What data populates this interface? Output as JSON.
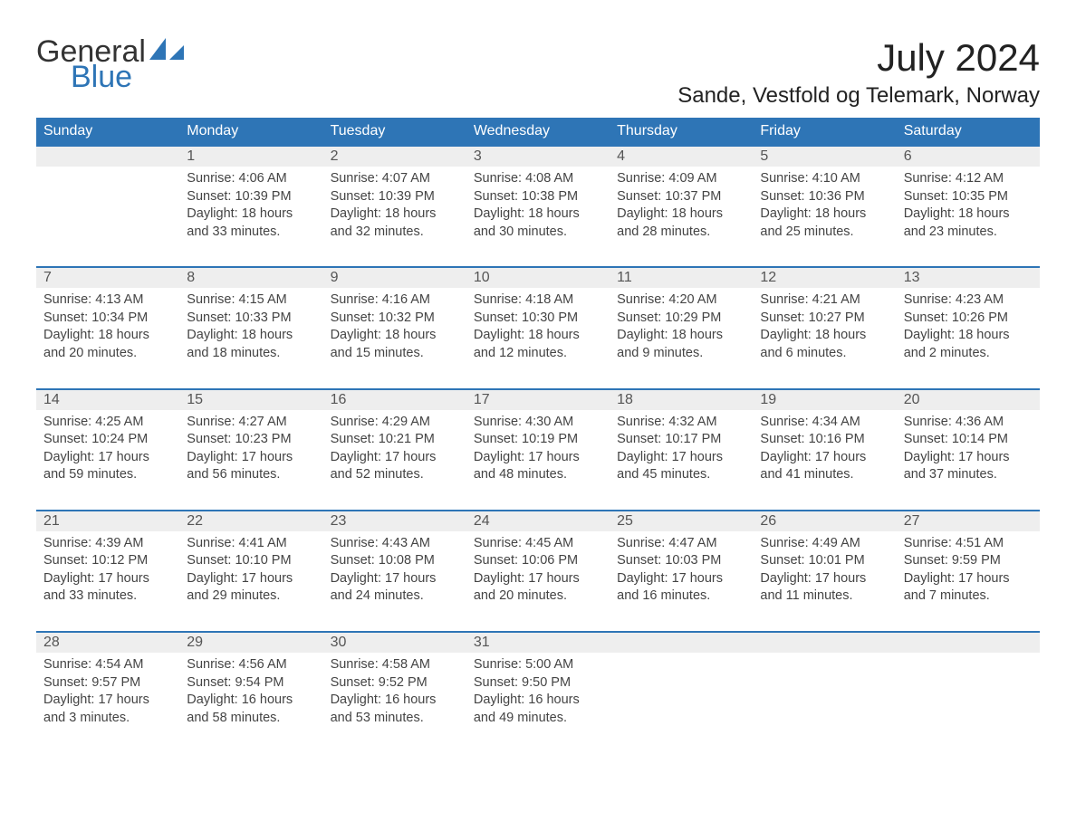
{
  "brand": {
    "word1": "General",
    "word2": "Blue",
    "accent_color": "#2e75b6"
  },
  "title": "July 2024",
  "location": "Sande, Vestfold og Telemark, Norway",
  "colors": {
    "header_bg": "#2e75b6",
    "header_text": "#ffffff",
    "daynum_bg": "#eeeeee",
    "row_border": "#2e75b6",
    "text": "#444444"
  },
  "day_labels": [
    "Sunday",
    "Monday",
    "Tuesday",
    "Wednesday",
    "Thursday",
    "Friday",
    "Saturday"
  ],
  "weeks": [
    [
      null,
      {
        "n": "1",
        "sunrise": "Sunrise: 4:06 AM",
        "sunset": "Sunset: 10:39 PM",
        "d1": "Daylight: 18 hours",
        "d2": "and 33 minutes."
      },
      {
        "n": "2",
        "sunrise": "Sunrise: 4:07 AM",
        "sunset": "Sunset: 10:39 PM",
        "d1": "Daylight: 18 hours",
        "d2": "and 32 minutes."
      },
      {
        "n": "3",
        "sunrise": "Sunrise: 4:08 AM",
        "sunset": "Sunset: 10:38 PM",
        "d1": "Daylight: 18 hours",
        "d2": "and 30 minutes."
      },
      {
        "n": "4",
        "sunrise": "Sunrise: 4:09 AM",
        "sunset": "Sunset: 10:37 PM",
        "d1": "Daylight: 18 hours",
        "d2": "and 28 minutes."
      },
      {
        "n": "5",
        "sunrise": "Sunrise: 4:10 AM",
        "sunset": "Sunset: 10:36 PM",
        "d1": "Daylight: 18 hours",
        "d2": "and 25 minutes."
      },
      {
        "n": "6",
        "sunrise": "Sunrise: 4:12 AM",
        "sunset": "Sunset: 10:35 PM",
        "d1": "Daylight: 18 hours",
        "d2": "and 23 minutes."
      }
    ],
    [
      {
        "n": "7",
        "sunrise": "Sunrise: 4:13 AM",
        "sunset": "Sunset: 10:34 PM",
        "d1": "Daylight: 18 hours",
        "d2": "and 20 minutes."
      },
      {
        "n": "8",
        "sunrise": "Sunrise: 4:15 AM",
        "sunset": "Sunset: 10:33 PM",
        "d1": "Daylight: 18 hours",
        "d2": "and 18 minutes."
      },
      {
        "n": "9",
        "sunrise": "Sunrise: 4:16 AM",
        "sunset": "Sunset: 10:32 PM",
        "d1": "Daylight: 18 hours",
        "d2": "and 15 minutes."
      },
      {
        "n": "10",
        "sunrise": "Sunrise: 4:18 AM",
        "sunset": "Sunset: 10:30 PM",
        "d1": "Daylight: 18 hours",
        "d2": "and 12 minutes."
      },
      {
        "n": "11",
        "sunrise": "Sunrise: 4:20 AM",
        "sunset": "Sunset: 10:29 PM",
        "d1": "Daylight: 18 hours",
        "d2": "and 9 minutes."
      },
      {
        "n": "12",
        "sunrise": "Sunrise: 4:21 AM",
        "sunset": "Sunset: 10:27 PM",
        "d1": "Daylight: 18 hours",
        "d2": "and 6 minutes."
      },
      {
        "n": "13",
        "sunrise": "Sunrise: 4:23 AM",
        "sunset": "Sunset: 10:26 PM",
        "d1": "Daylight: 18 hours",
        "d2": "and 2 minutes."
      }
    ],
    [
      {
        "n": "14",
        "sunrise": "Sunrise: 4:25 AM",
        "sunset": "Sunset: 10:24 PM",
        "d1": "Daylight: 17 hours",
        "d2": "and 59 minutes."
      },
      {
        "n": "15",
        "sunrise": "Sunrise: 4:27 AM",
        "sunset": "Sunset: 10:23 PM",
        "d1": "Daylight: 17 hours",
        "d2": "and 56 minutes."
      },
      {
        "n": "16",
        "sunrise": "Sunrise: 4:29 AM",
        "sunset": "Sunset: 10:21 PM",
        "d1": "Daylight: 17 hours",
        "d2": "and 52 minutes."
      },
      {
        "n": "17",
        "sunrise": "Sunrise: 4:30 AM",
        "sunset": "Sunset: 10:19 PM",
        "d1": "Daylight: 17 hours",
        "d2": "and 48 minutes."
      },
      {
        "n": "18",
        "sunrise": "Sunrise: 4:32 AM",
        "sunset": "Sunset: 10:17 PM",
        "d1": "Daylight: 17 hours",
        "d2": "and 45 minutes."
      },
      {
        "n": "19",
        "sunrise": "Sunrise: 4:34 AM",
        "sunset": "Sunset: 10:16 PM",
        "d1": "Daylight: 17 hours",
        "d2": "and 41 minutes."
      },
      {
        "n": "20",
        "sunrise": "Sunrise: 4:36 AM",
        "sunset": "Sunset: 10:14 PM",
        "d1": "Daylight: 17 hours",
        "d2": "and 37 minutes."
      }
    ],
    [
      {
        "n": "21",
        "sunrise": "Sunrise: 4:39 AM",
        "sunset": "Sunset: 10:12 PM",
        "d1": "Daylight: 17 hours",
        "d2": "and 33 minutes."
      },
      {
        "n": "22",
        "sunrise": "Sunrise: 4:41 AM",
        "sunset": "Sunset: 10:10 PM",
        "d1": "Daylight: 17 hours",
        "d2": "and 29 minutes."
      },
      {
        "n": "23",
        "sunrise": "Sunrise: 4:43 AM",
        "sunset": "Sunset: 10:08 PM",
        "d1": "Daylight: 17 hours",
        "d2": "and 24 minutes."
      },
      {
        "n": "24",
        "sunrise": "Sunrise: 4:45 AM",
        "sunset": "Sunset: 10:06 PM",
        "d1": "Daylight: 17 hours",
        "d2": "and 20 minutes."
      },
      {
        "n": "25",
        "sunrise": "Sunrise: 4:47 AM",
        "sunset": "Sunset: 10:03 PM",
        "d1": "Daylight: 17 hours",
        "d2": "and 16 minutes."
      },
      {
        "n": "26",
        "sunrise": "Sunrise: 4:49 AM",
        "sunset": "Sunset: 10:01 PM",
        "d1": "Daylight: 17 hours",
        "d2": "and 11 minutes."
      },
      {
        "n": "27",
        "sunrise": "Sunrise: 4:51 AM",
        "sunset": "Sunset: 9:59 PM",
        "d1": "Daylight: 17 hours",
        "d2": "and 7 minutes."
      }
    ],
    [
      {
        "n": "28",
        "sunrise": "Sunrise: 4:54 AM",
        "sunset": "Sunset: 9:57 PM",
        "d1": "Daylight: 17 hours",
        "d2": "and 3 minutes."
      },
      {
        "n": "29",
        "sunrise": "Sunrise: 4:56 AM",
        "sunset": "Sunset: 9:54 PM",
        "d1": "Daylight: 16 hours",
        "d2": "and 58 minutes."
      },
      {
        "n": "30",
        "sunrise": "Sunrise: 4:58 AM",
        "sunset": "Sunset: 9:52 PM",
        "d1": "Daylight: 16 hours",
        "d2": "and 53 minutes."
      },
      {
        "n": "31",
        "sunrise": "Sunrise: 5:00 AM",
        "sunset": "Sunset: 9:50 PM",
        "d1": "Daylight: 16 hours",
        "d2": "and 49 minutes."
      },
      null,
      null,
      null
    ]
  ]
}
